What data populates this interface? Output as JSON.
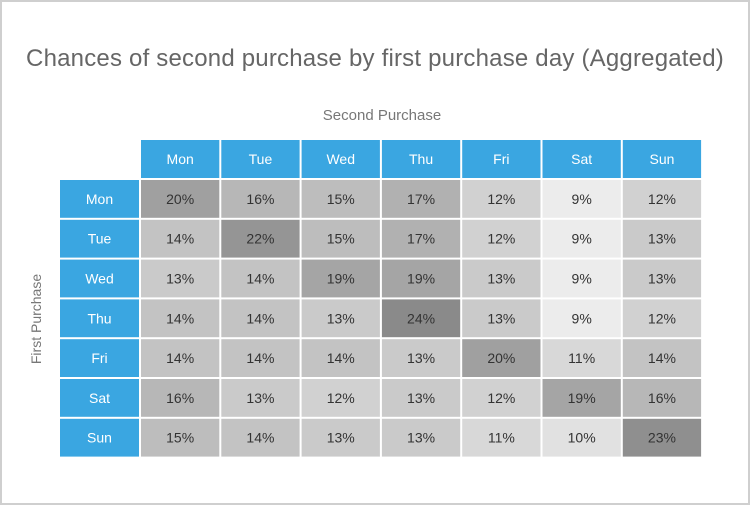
{
  "chart_data": {
    "type": "heatmap",
    "title": "Chances of second purchase by first purchase day (Aggregated)",
    "xlabel": "Second Purchase",
    "ylabel": "First Purchase",
    "columns": [
      "Mon",
      "Tue",
      "Wed",
      "Thu",
      "Fri",
      "Sat",
      "Sun"
    ],
    "rows": [
      "Mon",
      "Tue",
      "Wed",
      "Thu",
      "Fri",
      "Sat",
      "Sun"
    ],
    "values": [
      [
        20,
        16,
        15,
        17,
        12,
        9,
        12
      ],
      [
        14,
        22,
        15,
        17,
        12,
        9,
        13
      ],
      [
        13,
        14,
        19,
        19,
        13,
        9,
        13
      ],
      [
        14,
        14,
        13,
        24,
        13,
        9,
        12
      ],
      [
        14,
        14,
        14,
        13,
        20,
        11,
        14
      ],
      [
        16,
        13,
        12,
        13,
        12,
        19,
        16
      ],
      [
        15,
        14,
        13,
        13,
        11,
        10,
        23
      ]
    ],
    "value_suffix": "%",
    "header_color": "#3aa6e1",
    "header_text_color": "#ffffff",
    "cell_color_low": "#ececec",
    "cell_color_high": "#8a8a8a",
    "cell_text_color": "#333333"
  }
}
